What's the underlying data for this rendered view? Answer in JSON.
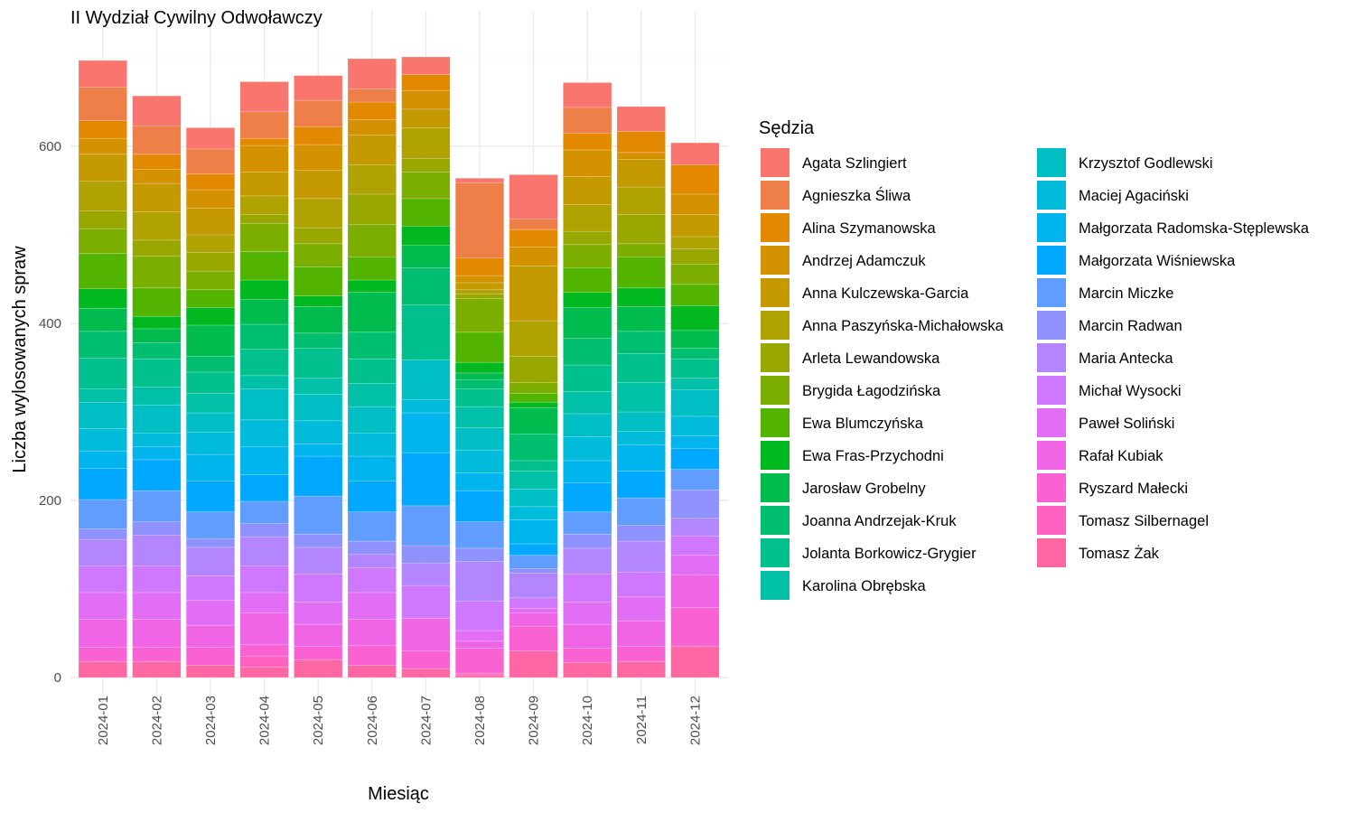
{
  "chart_data": {
    "type": "bar",
    "stacked": true,
    "title": "II Wydział Cywilny Odwoławczy",
    "xlabel": "Miesiąc",
    "ylabel": "Liczba wylosowanych spraw",
    "ylim": [
      0,
      750
    ],
    "y_ticks": [
      0,
      200,
      400,
      600
    ],
    "grid": true,
    "legend_title": "Sędzia",
    "legend_position": "right",
    "categories": [
      "2024-01",
      "2024-02",
      "2024-03",
      "2024-04",
      "2024-05",
      "2024-06",
      "2024-07",
      "2024-08",
      "2024-09",
      "2024-10",
      "2024-11",
      "2024-12"
    ],
    "series": [
      {
        "name": "Agata Szlingiert",
        "color": "#F8766D",
        "values": [
          30,
          34,
          24,
          34,
          28,
          34,
          20,
          5,
          50,
          28,
          28,
          25
        ]
      },
      {
        "name": "Agnieszka Śliwa",
        "color": "#EF7F48",
        "values": [
          38,
          32,
          28,
          30,
          30,
          15,
          0,
          85,
          12,
          29,
          0,
          0
        ]
      },
      {
        "name": "Alina Szymanowska",
        "color": "#E38900",
        "values": [
          20,
          17,
          18,
          8,
          20,
          20,
          18,
          20,
          20,
          19,
          24,
          33
        ]
      },
      {
        "name": "Andrzej Adamczuk",
        "color": "#D49200",
        "values": [
          18,
          16,
          21,
          30,
          29,
          17,
          21,
          8,
          21,
          30,
          8,
          23
        ]
      },
      {
        "name": "Anna Kulczewska-Garcia",
        "color": "#C49A00",
        "values": [
          30,
          32,
          30,
          27,
          32,
          34,
          21,
          8,
          62,
          32,
          31,
          25
        ]
      },
      {
        "name": "Anna Paszyńska-Michałowska",
        "color": "#B0A200",
        "values": [
          34,
          32,
          20,
          21,
          33,
          33,
          35,
          5,
          40,
          30,
          31,
          14
        ]
      },
      {
        "name": "Arleta Lewandowska",
        "color": "#99A800",
        "values": [
          20,
          18,
          21,
          10,
          18,
          34,
          15,
          5,
          30,
          15,
          33,
          17
        ]
      },
      {
        "name": "Brygida Łagodzińska",
        "color": "#7CAE00",
        "values": [
          28,
          36,
          21,
          32,
          26,
          37,
          30,
          38,
          12,
          26,
          15,
          23
        ]
      },
      {
        "name": "Ewa Blumczyńska",
        "color": "#53B400",
        "values": [
          40,
          32,
          20,
          32,
          33,
          26,
          31,
          34,
          10,
          28,
          35,
          24
        ]
      },
      {
        "name": "Ewa Fras-Przychodni",
        "color": "#00B81F",
        "values": [
          22,
          14,
          20,
          22,
          12,
          14,
          22,
          12,
          6,
          17,
          21,
          28
        ]
      },
      {
        "name": "Jarosław Grobelny",
        "color": "#00BB4E",
        "values": [
          26,
          16,
          35,
          28,
          30,
          45,
          25,
          8,
          30,
          35,
          28,
          20
        ]
      },
      {
        "name": "Joanna Andrzejak-Kruk",
        "color": "#00BE70",
        "values": [
          30,
          18,
          18,
          28,
          17,
          30,
          42,
          10,
          30,
          30,
          25,
          12
        ]
      },
      {
        "name": "Jolanta Borkowicz-Grygier",
        "color": "#00C08D",
        "values": [
          35,
          32,
          24,
          30,
          34,
          28,
          62,
          20,
          12,
          30,
          33,
          22
        ]
      },
      {
        "name": "Karolina Obrębska",
        "color": "#00C1A7",
        "values": [
          15,
          20,
          22,
          15,
          18,
          26,
          0,
          24,
          20,
          25,
          33,
          13
        ]
      },
      {
        "name": "Krzysztof Godlewski",
        "color": "#00BFC4",
        "values": [
          30,
          32,
          22,
          35,
          30,
          30,
          45,
          25,
          20,
          26,
          22,
          30
        ]
      },
      {
        "name": "Maciej Agaciński",
        "color": "#00BBDA",
        "values": [
          25,
          15,
          25,
          30,
          26,
          26,
          15,
          26,
          15,
          27,
          15,
          22
        ]
      },
      {
        "name": "Małgorzata Radomska-Stęplewska",
        "color": "#00B5ED",
        "values": [
          20,
          15,
          30,
          32,
          14,
          28,
          45,
          20,
          27,
          25,
          30,
          14
        ]
      },
      {
        "name": "Małgorzata Wiśniewska",
        "color": "#00A9FF",
        "values": [
          35,
          35,
          35,
          30,
          45,
          35,
          60,
          35,
          13,
          33,
          30,
          24
        ]
      },
      {
        "name": "Marcin Miczke",
        "color": "#619CFF",
        "values": [
          33,
          35,
          30,
          25,
          43,
          33,
          45,
          30,
          15,
          25,
          31,
          23
        ]
      },
      {
        "name": "Marcin Radwan",
        "color": "#8F91FF",
        "values": [
          12,
          15,
          10,
          15,
          15,
          15,
          20,
          15,
          5,
          16,
          18,
          32
        ]
      },
      {
        "name": "Maria Antecka",
        "color": "#B385FF",
        "values": [
          30,
          35,
          32,
          33,
          30,
          15,
          25,
          45,
          28,
          29,
          35,
          20
        ]
      },
      {
        "name": "Michał Wysocki",
        "color": "#CF78FF",
        "values": [
          30,
          30,
          28,
          30,
          32,
          28,
          37,
          33,
          12,
          32,
          28,
          22
        ]
      },
      {
        "name": "Paweł Soliński",
        "color": "#E36EF6",
        "values": [
          30,
          30,
          28,
          23,
          25,
          30,
          0,
          12,
          5,
          25,
          27,
          22
        ]
      },
      {
        "name": "Rafał Kubiak",
        "color": "#F064E6",
        "values": [
          32,
          32,
          25,
          36,
          25,
          30,
          37,
          8,
          15,
          27,
          29,
          37
        ]
      },
      {
        "name": "Ryszard Małecki",
        "color": "#FA62D3",
        "values": [
          16,
          16,
          20,
          13,
          15,
          22,
          20,
          28,
          28,
          16,
          17,
          44
        ]
      },
      {
        "name": "Tomasz Silbernagel",
        "color": "#FE61BF",
        "values": [
          0,
          0,
          0,
          12,
          0,
          0,
          0,
          2,
          0,
          0,
          0,
          0
        ]
      },
      {
        "name": "Tomasz Żak",
        "color": "#FF67A4",
        "values": [
          18,
          18,
          14,
          12,
          20,
          14,
          10,
          3,
          30,
          17,
          18,
          35
        ]
      }
    ]
  }
}
